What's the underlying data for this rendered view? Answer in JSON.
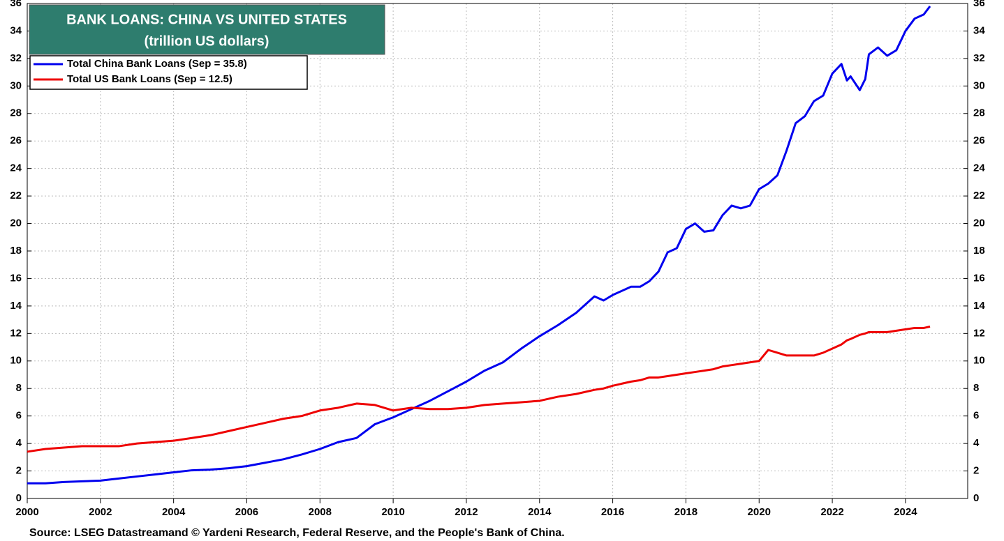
{
  "chart_data": {
    "type": "line",
    "title": "BANK LOANS: CHINA VS UNITED STATES",
    "subtitle": "(trillion US dollars)",
    "source": "Source: LSEG Datastreamand © Yardeni Research, Federal Reserve, and the People's Bank of China.",
    "x": [
      2000,
      2000.5,
      2001,
      2001.5,
      2002,
      2002.5,
      2003,
      2003.5,
      2004,
      2004.5,
      2005,
      2005.5,
      2006,
      2006.5,
      2007,
      2007.5,
      2008,
      2008.5,
      2009,
      2009.5,
      2010,
      2010.5,
      2011,
      2011.5,
      2012,
      2012.5,
      2013,
      2013.5,
      2014,
      2014.5,
      2015,
      2015.5,
      2015.75,
      2016,
      2016.5,
      2016.75,
      2017,
      2017.25,
      2017.5,
      2017.75,
      2018,
      2018.25,
      2018.5,
      2018.75,
      2019,
      2019.25,
      2019.5,
      2019.75,
      2020,
      2020.25,
      2020.5,
      2020.75,
      2021,
      2021.25,
      2021.5,
      2021.75,
      2022,
      2022.25,
      2022.4,
      2022.5,
      2022.75,
      2022.9,
      2023,
      2023.25,
      2023.5,
      2023.75,
      2024,
      2024.25,
      2024.5,
      2024.67
    ],
    "series": [
      {
        "name": "Total China Bank Loans (Sep = 35.8)",
        "color": "#0000ee",
        "values": [
          1.1,
          1.1,
          1.2,
          1.25,
          1.3,
          1.45,
          1.6,
          1.75,
          1.9,
          2.05,
          2.1,
          2.2,
          2.35,
          2.6,
          2.85,
          3.2,
          3.6,
          4.1,
          4.4,
          5.4,
          5.9,
          6.5,
          7.1,
          7.8,
          8.5,
          9.3,
          9.9,
          10.9,
          11.8,
          12.6,
          13.5,
          14.7,
          14.4,
          14.8,
          15.4,
          15.4,
          15.8,
          16.5,
          17.9,
          18.2,
          19.6,
          20.0,
          19.4,
          19.5,
          20.6,
          21.3,
          21.1,
          21.3,
          22.5,
          22.9,
          23.5,
          25.3,
          27.3,
          27.8,
          28.9,
          29.3,
          30.9,
          31.6,
          30.4,
          30.7,
          29.7,
          30.5,
          32.3,
          32.8,
          32.2,
          32.6,
          34.0,
          34.9,
          35.2,
          35.8
        ]
      },
      {
        "name": "Total US Bank Loans (Sep = 12.5)",
        "color": "#ee0000",
        "values": [
          3.4,
          3.6,
          3.7,
          3.8,
          3.8,
          3.8,
          4.0,
          4.1,
          4.2,
          4.4,
          4.6,
          4.9,
          5.2,
          5.5,
          5.8,
          6.0,
          6.4,
          6.6,
          6.9,
          6.8,
          6.4,
          6.6,
          6.5,
          6.5,
          6.6,
          6.8,
          6.9,
          7.0,
          7.1,
          7.4,
          7.6,
          7.9,
          8.0,
          8.2,
          8.5,
          8.6,
          8.8,
          8.8,
          8.9,
          9.0,
          9.1,
          9.2,
          9.3,
          9.4,
          9.6,
          9.7,
          9.8,
          9.9,
          10.0,
          10.8,
          10.6,
          10.4,
          10.4,
          10.4,
          10.4,
          10.6,
          10.9,
          11.2,
          11.5,
          11.6,
          11.9,
          12.0,
          12.1,
          12.1,
          12.1,
          12.2,
          12.3,
          12.4,
          12.4,
          12.5
        ]
      }
    ],
    "xlim": [
      2000,
      2025.7
    ],
    "xticks": [
      2000,
      2002,
      2004,
      2006,
      2008,
      2010,
      2012,
      2014,
      2016,
      2018,
      2020,
      2022,
      2024
    ],
    "ylim": [
      0,
      36
    ],
    "yticks": [
      0,
      2,
      4,
      6,
      8,
      10,
      12,
      14,
      16,
      18,
      20,
      22,
      24,
      26,
      28,
      30,
      32,
      34,
      36
    ],
    "grid": true,
    "legend": "upper left"
  }
}
